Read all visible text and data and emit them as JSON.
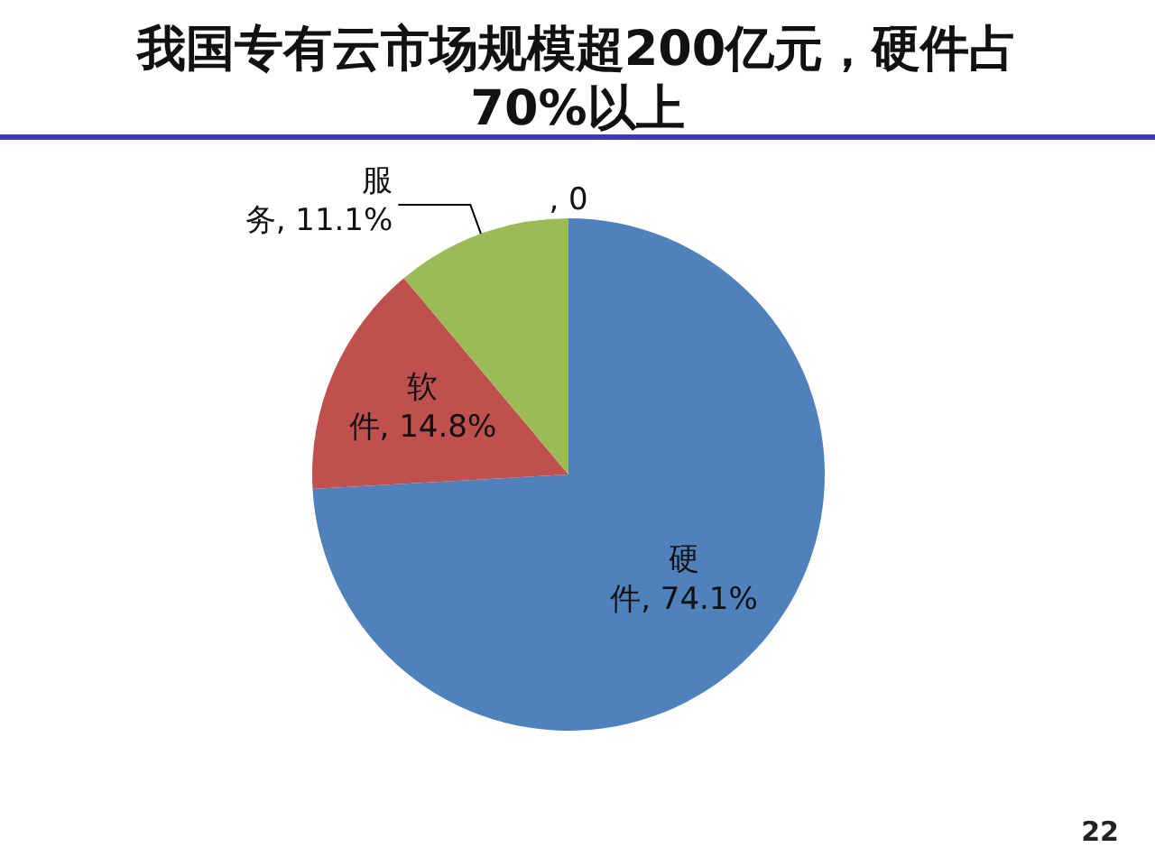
{
  "chart_data": {
    "type": "pie",
    "title": "我国专有云市场规模超200亿元，硬件占70%以上",
    "categories": [
      "硬件",
      "软件",
      "服务",
      null
    ],
    "values": [
      74.1,
      14.8,
      11.1,
      0
    ],
    "colors": [
      "#4f81bd",
      "#c0504d",
      "#9bbb59",
      null
    ],
    "value_labels": [
      "74.1%",
      "14.8%",
      "11.1%",
      ", 0"
    ],
    "annotations": [
      "22"
    ],
    "legend": false
  }
}
